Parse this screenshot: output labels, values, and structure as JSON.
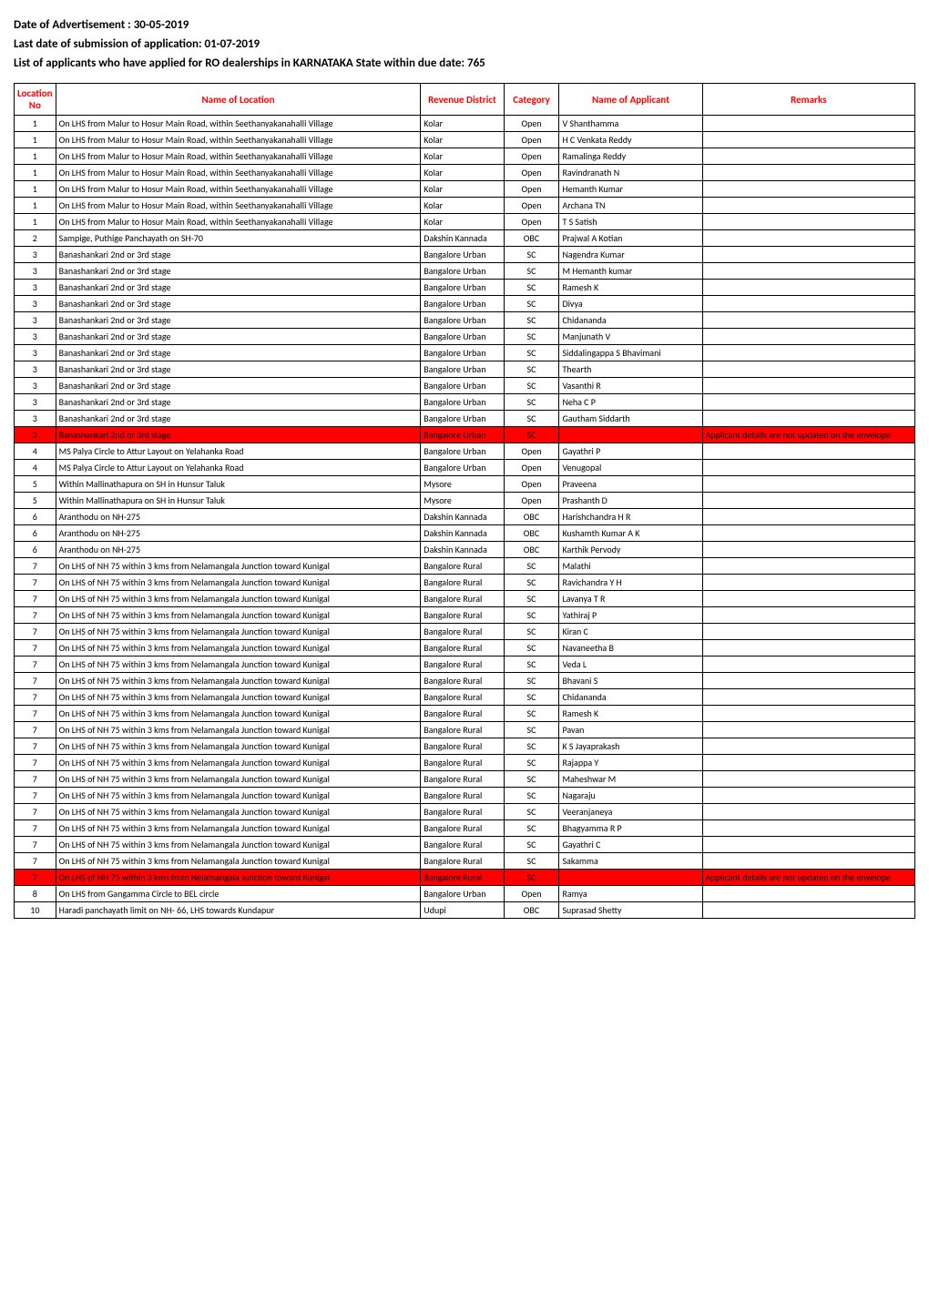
{
  "heading1": "Date of Advertisement : 30-05-2019",
  "heading2": "Last date of submission of application: 01-07-2019",
  "heading3": "List of applicants who have applied for RO dealerships in KARNATAKA State within due date: 765",
  "table": {
    "columns": [
      "Location No",
      "Name of Location",
      "Revenue District",
      "Category",
      "Name of Applicant",
      "Remarks"
    ],
    "header_color": "#ff0000",
    "header_bg": "#ffffff",
    "border_color": "#000000",
    "row_red_bg": "#ff0000",
    "rows": [
      {
        "loc": "1",
        "name": "On LHS from Malur to Hosur Main Road, within Seethanyakanahalli Village",
        "district": "Kolar",
        "cat": "Open",
        "applicant": "V Shanthamma",
        "remarks": "",
        "red": false
      },
      {
        "loc": "1",
        "name": "On LHS from Malur to Hosur Main Road, within Seethanyakanahalli Village",
        "district": "Kolar",
        "cat": "Open",
        "applicant": "H C Venkata Reddy",
        "remarks": "",
        "red": false
      },
      {
        "loc": "1",
        "name": "On LHS from Malur to Hosur Main Road, within Seethanyakanahalli Village",
        "district": "Kolar",
        "cat": "Open",
        "applicant": "Ramalinga Reddy",
        "remarks": "",
        "red": false
      },
      {
        "loc": "1",
        "name": "On LHS from Malur to Hosur Main Road, within Seethanyakanahalli Village",
        "district": "Kolar",
        "cat": "Open",
        "applicant": "Ravindranath N",
        "remarks": "",
        "red": false
      },
      {
        "loc": "1",
        "name": "On LHS from Malur to Hosur Main Road, within Seethanyakanahalli Village",
        "district": "Kolar",
        "cat": "Open",
        "applicant": "Hemanth Kumar",
        "remarks": "",
        "red": false
      },
      {
        "loc": "1",
        "name": "On LHS from Malur to Hosur Main Road, within Seethanyakanahalli Village",
        "district": "Kolar",
        "cat": "Open",
        "applicant": "Archana TN",
        "remarks": "",
        "red": false
      },
      {
        "loc": "1",
        "name": "On LHS from Malur to Hosur Main Road, within Seethanyakanahalli Village",
        "district": "Kolar",
        "cat": "Open",
        "applicant": "T S Satish",
        "remarks": "",
        "red": false
      },
      {
        "loc": "2",
        "name": "Sampige, Puthige Panchayath on SH-70",
        "district": "Dakshin Kannada",
        "cat": "OBC",
        "applicant": "Prajwal A Kotian",
        "remarks": "",
        "red": false
      },
      {
        "loc": "3",
        "name": "Banashankari 2nd or 3rd stage",
        "district": "Bangalore Urban",
        "cat": "SC",
        "applicant": "Nagendra Kumar",
        "remarks": "",
        "red": false
      },
      {
        "loc": "3",
        "name": "Banashankari 2nd or 3rd stage",
        "district": "Bangalore Urban",
        "cat": "SC",
        "applicant": "M Hemanth kumar",
        "remarks": "",
        "red": false
      },
      {
        "loc": "3",
        "name": "Banashankari 2nd or 3rd stage",
        "district": "Bangalore Urban",
        "cat": "SC",
        "applicant": "Ramesh K",
        "remarks": "",
        "red": false
      },
      {
        "loc": "3",
        "name": "Banashankari 2nd or 3rd stage",
        "district": "Bangalore Urban",
        "cat": "SC",
        "applicant": "Divya",
        "remarks": "",
        "red": false
      },
      {
        "loc": "3",
        "name": "Banashankari 2nd or 3rd stage",
        "district": "Bangalore Urban",
        "cat": "SC",
        "applicant": "Chidananda",
        "remarks": "",
        "red": false
      },
      {
        "loc": "3",
        "name": "Banashankari 2nd or 3rd stage",
        "district": "Bangalore Urban",
        "cat": "SC",
        "applicant": "Manjunath V",
        "remarks": "",
        "red": false
      },
      {
        "loc": "3",
        "name": "Banashankari 2nd or 3rd stage",
        "district": "Bangalore Urban",
        "cat": "SC",
        "applicant": "Siddalingappa S Bhavimani",
        "remarks": "",
        "red": false
      },
      {
        "loc": "3",
        "name": "Banashankari 2nd or 3rd stage",
        "district": "Bangalore Urban",
        "cat": "SC",
        "applicant": "Thearth",
        "remarks": "",
        "red": false
      },
      {
        "loc": "3",
        "name": "Banashankari 2nd or 3rd stage",
        "district": "Bangalore Urban",
        "cat": "SC",
        "applicant": "Vasanthi R",
        "remarks": "",
        "red": false
      },
      {
        "loc": "3",
        "name": "Banashankari 2nd or 3rd stage",
        "district": "Bangalore Urban",
        "cat": "SC",
        "applicant": "Neha C P",
        "remarks": "",
        "red": false
      },
      {
        "loc": "3",
        "name": "Banashankari 2nd or 3rd stage",
        "district": "Bangalore Urban",
        "cat": "SC",
        "applicant": "Gautham Siddarth",
        "remarks": "",
        "red": false
      },
      {
        "loc": "3",
        "name": "Banashankari 2nd or 3rd stage",
        "district": "Bangalore Urban",
        "cat": "SC",
        "applicant": "",
        "remarks": "Applicant details are not updated on the envelope",
        "red": true
      },
      {
        "loc": "4",
        "name": "MS Palya Circle to Attur Layout on Yelahanka Road",
        "district": "Bangalore Urban",
        "cat": "Open",
        "applicant": "Gayathri P",
        "remarks": "",
        "red": false
      },
      {
        "loc": "4",
        "name": "MS Palya Circle to Attur Layout on Yelahanka Road",
        "district": "Bangalore Urban",
        "cat": "Open",
        "applicant": "Venugopal",
        "remarks": "",
        "red": false
      },
      {
        "loc": "5",
        "name": "Within Mallinathapura on SH in Hunsur Taluk",
        "district": "Mysore",
        "cat": "Open",
        "applicant": "Praveena",
        "remarks": "",
        "red": false
      },
      {
        "loc": "5",
        "name": "Within Mallinathapura on SH in Hunsur Taluk",
        "district": "Mysore",
        "cat": "Open",
        "applicant": "Prashanth D",
        "remarks": "",
        "red": false
      },
      {
        "loc": "6",
        "name": "Aranthodu on NH-275",
        "district": "Dakshin Kannada",
        "cat": "OBC",
        "applicant": "Harishchandra H R",
        "remarks": "",
        "red": false
      },
      {
        "loc": "6",
        "name": "Aranthodu on NH-275",
        "district": "Dakshin Kannada",
        "cat": "OBC",
        "applicant": "Kushamth Kumar A K",
        "remarks": "",
        "red": false
      },
      {
        "loc": "6",
        "name": "Aranthodu on NH-275",
        "district": "Dakshin Kannada",
        "cat": "OBC",
        "applicant": "Karthik Pervody",
        "remarks": "",
        "red": false
      },
      {
        "loc": "7",
        "name": "On LHS of NH 75 within 3 kms from Nelamangala Junction toward Kunigal",
        "district": "Bangalore Rural",
        "cat": "SC",
        "applicant": "Malathi",
        "remarks": "",
        "red": false
      },
      {
        "loc": "7",
        "name": "On LHS of NH 75 within 3 kms from Nelamangala Junction toward Kunigal",
        "district": "Bangalore Rural",
        "cat": "SC",
        "applicant": "Ravichandra Y H",
        "remarks": "",
        "red": false
      },
      {
        "loc": "7",
        "name": "On LHS of NH 75 within 3 kms from Nelamangala Junction toward Kunigal",
        "district": "Bangalore Rural",
        "cat": "SC",
        "applicant": "Lavanya T R",
        "remarks": "",
        "red": false
      },
      {
        "loc": "7",
        "name": "On LHS of NH 75 within 3 kms from Nelamangala Junction toward Kunigal",
        "district": "Bangalore Rural",
        "cat": "SC",
        "applicant": "Yathiraj P",
        "remarks": "",
        "red": false
      },
      {
        "loc": "7",
        "name": "On LHS of NH 75 within 3 kms from Nelamangala Junction toward Kunigal",
        "district": "Bangalore Rural",
        "cat": "SC",
        "applicant": "Kiran C",
        "remarks": "",
        "red": false
      },
      {
        "loc": "7",
        "name": "On LHS of NH 75 within 3 kms from Nelamangala Junction toward Kunigal",
        "district": "Bangalore Rural",
        "cat": "SC",
        "applicant": "Navaneetha B",
        "remarks": "",
        "red": false
      },
      {
        "loc": "7",
        "name": "On LHS of NH 75 within 3 kms from Nelamangala Junction toward Kunigal",
        "district": "Bangalore Rural",
        "cat": "SC",
        "applicant": "Veda L",
        "remarks": "",
        "red": false
      },
      {
        "loc": "7",
        "name": "On LHS of NH 75 within 3 kms from Nelamangala Junction toward Kunigal",
        "district": "Bangalore Rural",
        "cat": "SC",
        "applicant": "Bhavani S",
        "remarks": "",
        "red": false
      },
      {
        "loc": "7",
        "name": "On LHS of NH 75 within 3 kms from Nelamangala Junction toward Kunigal",
        "district": "Bangalore Rural",
        "cat": "SC",
        "applicant": "Chidananda",
        "remarks": "",
        "red": false
      },
      {
        "loc": "7",
        "name": "On LHS of NH 75 within 3 kms from Nelamangala Junction toward Kunigal",
        "district": "Bangalore Rural",
        "cat": "SC",
        "applicant": "Ramesh K",
        "remarks": "",
        "red": false
      },
      {
        "loc": "7",
        "name": "On LHS of NH 75 within 3 kms from Nelamangala Junction toward Kunigal",
        "district": "Bangalore Rural",
        "cat": "SC",
        "applicant": "Pavan",
        "remarks": "",
        "red": false
      },
      {
        "loc": "7",
        "name": "On LHS of NH 75 within 3 kms from Nelamangala Junction toward Kunigal",
        "district": "Bangalore Rural",
        "cat": "SC",
        "applicant": "K S Jayaprakash",
        "remarks": "",
        "red": false
      },
      {
        "loc": "7",
        "name": "On LHS of NH 75 within 3 kms from Nelamangala Junction toward Kunigal",
        "district": "Bangalore Rural",
        "cat": "SC",
        "applicant": "Rajappa Y",
        "remarks": "",
        "red": false
      },
      {
        "loc": "7",
        "name": "On LHS of NH 75 within 3 kms from Nelamangala Junction toward Kunigal",
        "district": "Bangalore Rural",
        "cat": "SC",
        "applicant": "Maheshwar M",
        "remarks": "",
        "red": false
      },
      {
        "loc": "7",
        "name": "On LHS of NH 75 within 3 kms from Nelamangala Junction toward Kunigal",
        "district": "Bangalore Rural",
        "cat": "SC",
        "applicant": "Nagaraju",
        "remarks": "",
        "red": false
      },
      {
        "loc": "7",
        "name": "On LHS of NH 75 within 3 kms from Nelamangala Junction toward Kunigal",
        "district": "Bangalore Rural",
        "cat": "SC",
        "applicant": "Veeranjaneya",
        "remarks": "",
        "red": false
      },
      {
        "loc": "7",
        "name": "On LHS of NH 75 within 3 kms from Nelamangala Junction toward Kunigal",
        "district": "Bangalore Rural",
        "cat": "SC",
        "applicant": "Bhagyamma R P",
        "remarks": "",
        "red": false
      },
      {
        "loc": "7",
        "name": "On LHS of NH 75 within 3 kms from Nelamangala Junction toward Kunigal",
        "district": "Bangalore Rural",
        "cat": "SC",
        "applicant": "Gayathri C",
        "remarks": "",
        "red": false
      },
      {
        "loc": "7",
        "name": "On LHS of NH 75 within 3 kms from Nelamangala Junction toward Kunigal",
        "district": "Bangalore Rural",
        "cat": "SC",
        "applicant": "Sakamma",
        "remarks": "",
        "red": false
      },
      {
        "loc": "7",
        "name": "On LHS of NH 75 within 3 kms from Nelamangala Junction toward Kunigal",
        "district": "Bangalore Rural",
        "cat": "SC",
        "applicant": "",
        "remarks": "Applicant details are not updated on the envelope",
        "red": true
      },
      {
        "loc": "8",
        "name": "On LHS from Gangamma Circle to BEL circle",
        "district": "Bangalore Urban",
        "cat": "Open",
        "applicant": "Ramya",
        "remarks": "",
        "red": false
      },
      {
        "loc": "10",
        "name": "Haradi panchayath limit on NH- 66, LHS towards Kundapur",
        "district": "Udupi",
        "cat": "OBC",
        "applicant": "Suprasad Shetty",
        "remarks": "",
        "red": false
      }
    ]
  }
}
